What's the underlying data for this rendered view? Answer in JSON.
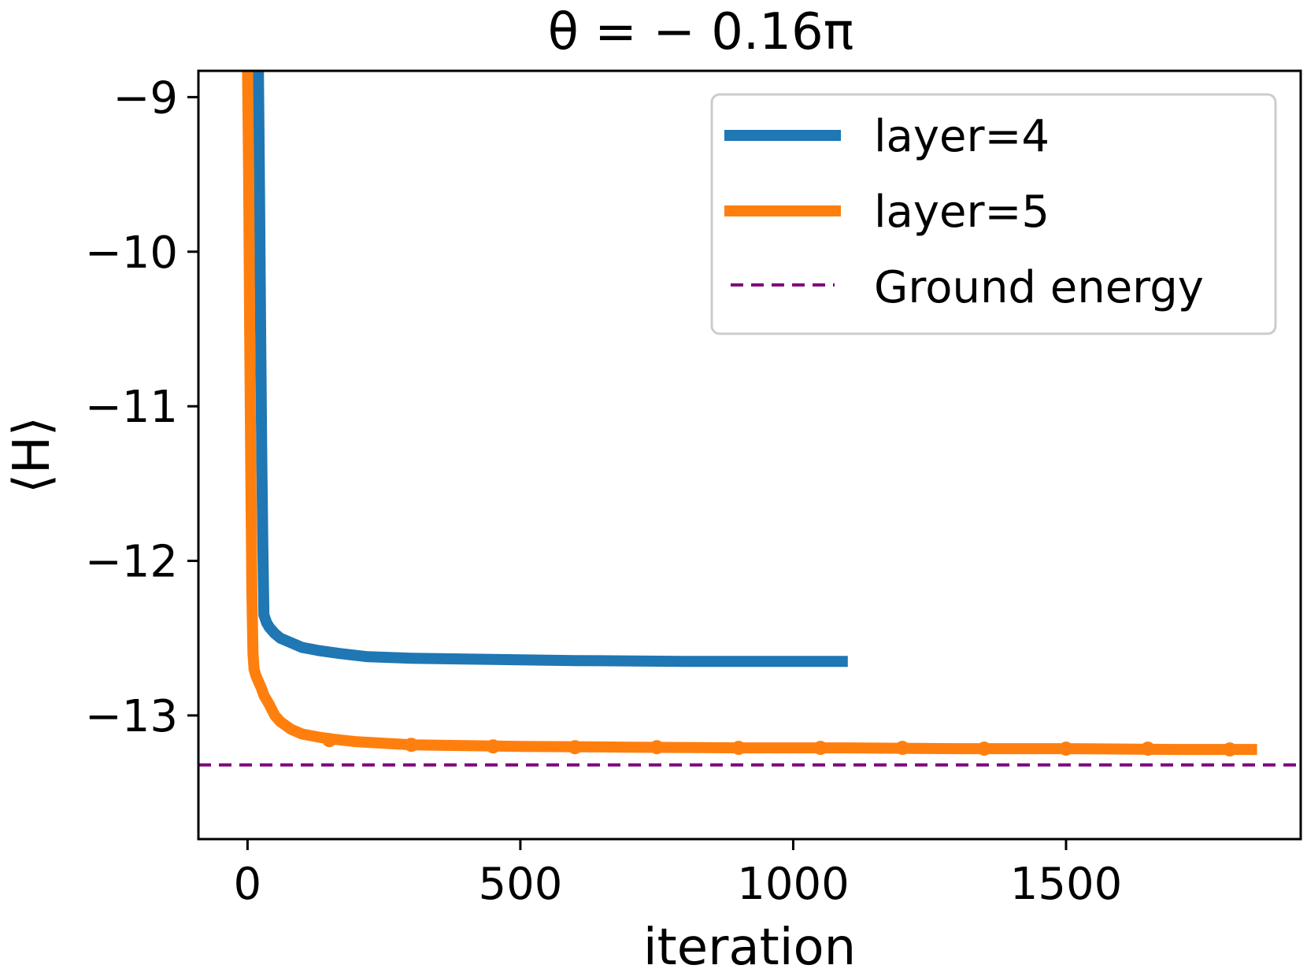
{
  "chart_data": {
    "type": "line",
    "title": "θ = − 0.16π",
    "xlabel": "iteration",
    "ylabel": "⟨H⟩",
    "xlim": [
      -90,
      1930
    ],
    "ylim": [
      -13.8,
      -8.83
    ],
    "xticks": [
      0,
      500,
      1000,
      1500
    ],
    "xtick_labels": [
      "0",
      "500",
      "1000",
      "1500"
    ],
    "yticks": [
      -9,
      -10,
      -11,
      -12,
      -13
    ],
    "ytick_labels": [
      "−9",
      "−10",
      "−11",
      "−12",
      "−13"
    ],
    "grid": false,
    "legend_position": "top-right",
    "series": [
      {
        "name": "layer=4",
        "color": "#1f77b4",
        "style": "solid",
        "x": [
          20,
          22,
          24,
          26,
          28,
          30,
          35,
          40,
          50,
          60,
          80,
          100,
          130,
          170,
          220,
          300,
          400,
          500,
          600,
          800,
          1000,
          1100
        ],
        "y": [
          -8.83,
          -9.6,
          -10.5,
          -11.3,
          -11.9,
          -12.35,
          -12.4,
          -12.43,
          -12.47,
          -12.5,
          -12.53,
          -12.56,
          -12.58,
          -12.6,
          -12.62,
          -12.63,
          -12.635,
          -12.64,
          -12.645,
          -12.65,
          -12.65,
          -12.65
        ]
      },
      {
        "name": "layer=5",
        "color": "#ff7f0e",
        "style": "solid",
        "x": [
          0,
          2,
          4,
          6,
          8,
          10,
          12,
          15,
          20,
          25,
          30,
          40,
          50,
          60,
          80,
          100,
          130,
          160,
          200,
          250,
          300,
          400,
          500,
          700,
          900,
          1100,
          1300,
          1500,
          1700,
          1850
        ],
        "y": [
          -8.83,
          -9.5,
          -10.5,
          -11.4,
          -12.2,
          -12.6,
          -12.7,
          -12.74,
          -12.78,
          -12.82,
          -12.87,
          -12.93,
          -13.0,
          -13.04,
          -13.09,
          -13.12,
          -13.14,
          -13.155,
          -13.17,
          -13.18,
          -13.19,
          -13.195,
          -13.2,
          -13.205,
          -13.21,
          -13.21,
          -13.215,
          -13.215,
          -13.22,
          -13.22
        ]
      },
      {
        "name": "Ground energy",
        "color": "#800080",
        "style": "dashed",
        "x": [
          -90,
          1930
        ],
        "y": [
          -13.32,
          -13.32
        ]
      }
    ],
    "markers": {
      "series": "layer=5",
      "x": [
        150,
        300,
        450,
        600,
        750,
        900,
        1050,
        1200,
        1350,
        1500,
        1650,
        1800
      ],
      "y": [
        -13.16,
        -13.19,
        -13.2,
        -13.205,
        -13.205,
        -13.21,
        -13.21,
        -13.21,
        -13.215,
        -13.215,
        -13.215,
        -13.22
      ]
    }
  }
}
